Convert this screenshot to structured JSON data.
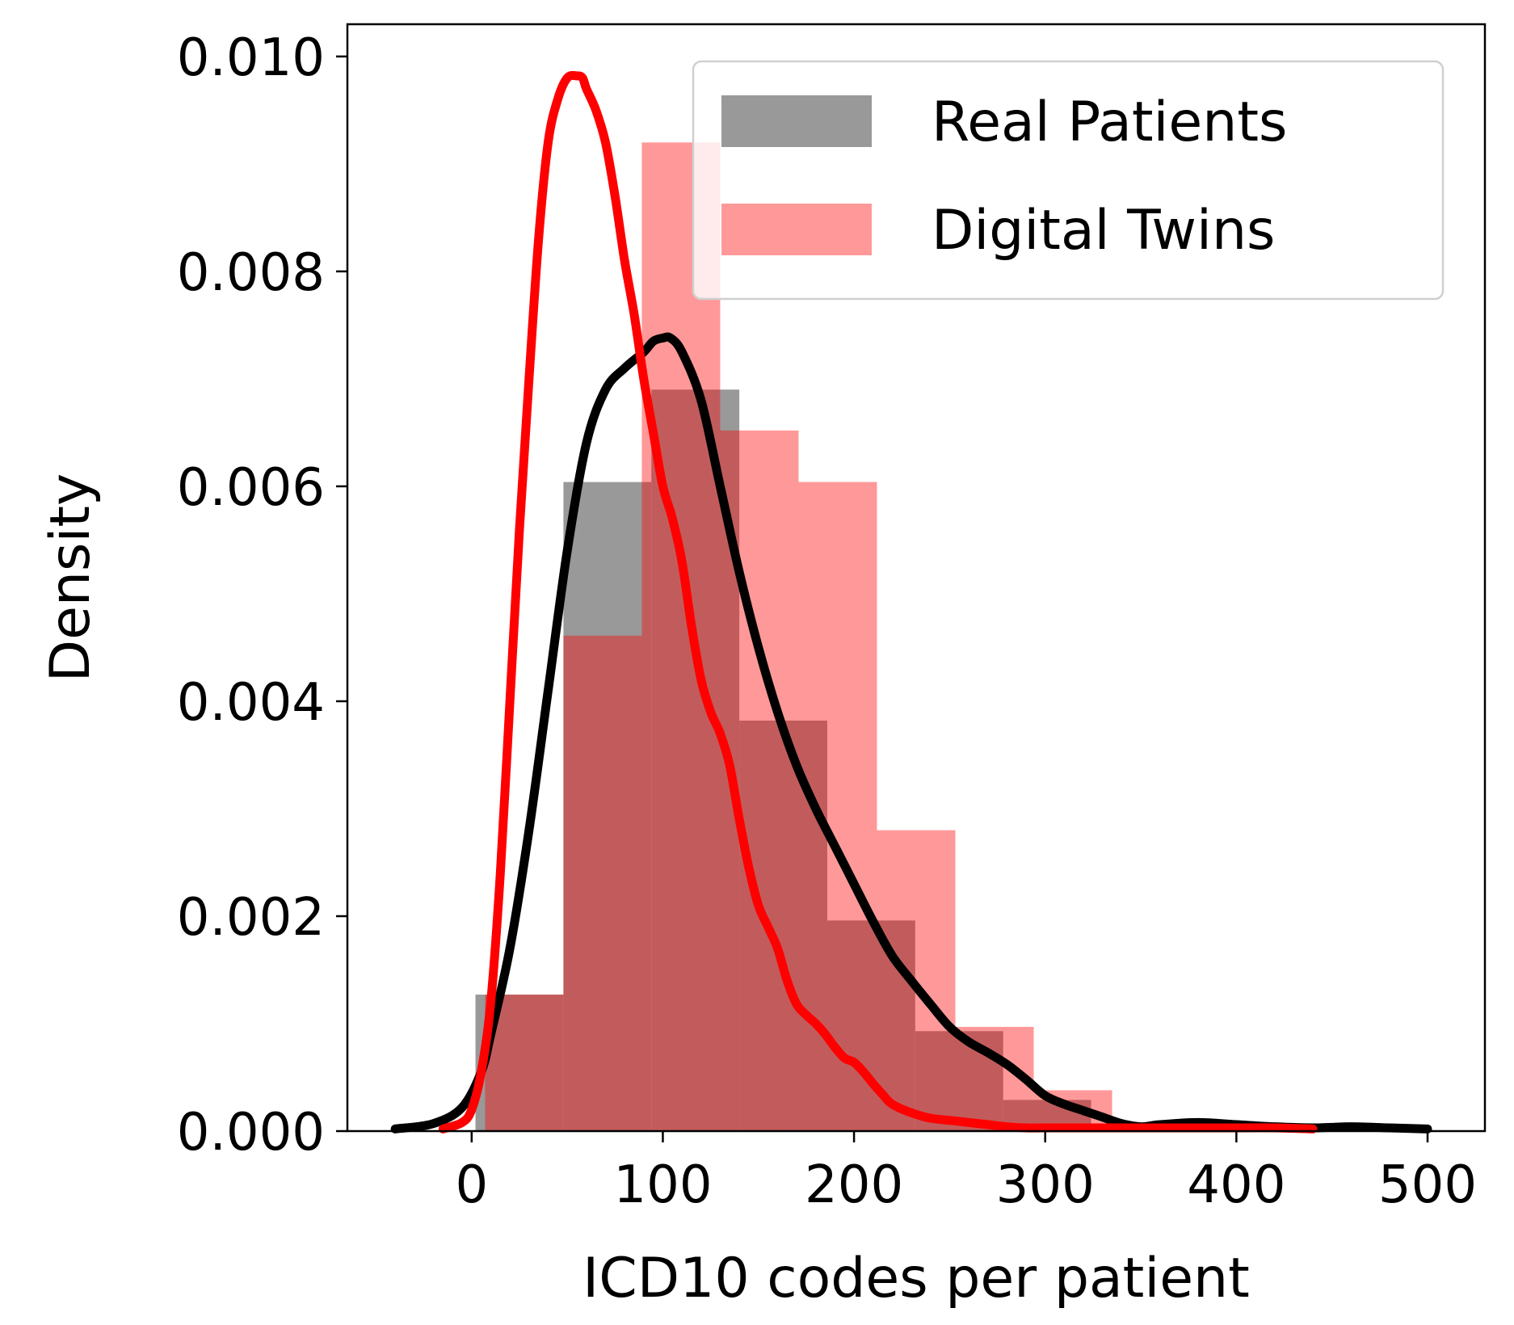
{
  "chart_data": {
    "type": "histogram+kde",
    "xlabel": "ICD10 codes per patient",
    "ylabel": "Density",
    "xlim": [
      -65,
      530
    ],
    "ylim": [
      0,
      0.0103
    ],
    "xticks": [
      0,
      100,
      200,
      300,
      400,
      500
    ],
    "yticks": [
      0.0,
      0.002,
      0.004,
      0.006,
      0.008,
      0.01
    ],
    "ytick_labels": [
      "0.000",
      "0.002",
      "0.004",
      "0.006",
      "0.008",
      "0.010"
    ],
    "grid": false,
    "legend": {
      "position": "top-right",
      "entries": [
        "Real Patients",
        "Digital Twins"
      ]
    },
    "series": [
      {
        "name": "Real Patients",
        "hist_color": "#999999",
        "line_color": "#000000",
        "bins": [
          {
            "x0": 2,
            "x1": 48,
            "density": 0.00127
          },
          {
            "x0": 48,
            "x1": 94,
            "density": 0.00604
          },
          {
            "x0": 94,
            "x1": 140,
            "density": 0.0069
          },
          {
            "x0": 140,
            "x1": 186,
            "density": 0.00382
          },
          {
            "x0": 186,
            "x1": 232,
            "density": 0.00196
          },
          {
            "x0": 232,
            "x1": 278,
            "density": 0.00093
          },
          {
            "x0": 278,
            "x1": 324,
            "density": 0.00029
          }
        ],
        "kde": {
          "x": [
            -40,
            -20,
            -5,
            5,
            10,
            20,
            30,
            40,
            50,
            60,
            70,
            80,
            90,
            95,
            100,
            104,
            110,
            120,
            130,
            140,
            150,
            160,
            170,
            180,
            190,
            200,
            210,
            220,
            230,
            240,
            250,
            260,
            270,
            280,
            290,
            300,
            310,
            320,
            330,
            340,
            350,
            360,
            380,
            400,
            420,
            440,
            460,
            480,
            500
          ],
          "y": [
            2e-05,
            7e-05,
            0.00022,
            0.00055,
            0.0009,
            0.0017,
            0.0028,
            0.0041,
            0.0054,
            0.0064,
            0.0069,
            0.0071,
            0.00725,
            0.00735,
            0.00738,
            0.00738,
            0.00725,
            0.0068,
            0.006,
            0.0052,
            0.0045,
            0.0039,
            0.0034,
            0.003,
            0.00265,
            0.0023,
            0.00195,
            0.00163,
            0.0014,
            0.00118,
            0.00097,
            0.00083,
            0.00073,
            0.00062,
            0.00048,
            0.00033,
            0.00025,
            0.00019,
            0.00013,
            7e-05,
            4e-05,
            6e-05,
            8e-05,
            6e-05,
            4e-05,
            3e-05,
            4e-05,
            3e-05,
            2e-05
          ]
        }
      },
      {
        "name": "Digital Twins",
        "hist_color": "#ff0000",
        "line_color": "#ff0000",
        "bins": [
          {
            "x0": 7,
            "x1": 48,
            "density": 0.00127
          },
          {
            "x0": 48,
            "x1": 89,
            "density": 0.00461
          },
          {
            "x0": 89,
            "x1": 130,
            "density": 0.0092
          },
          {
            "x0": 130,
            "x1": 171,
            "density": 0.00652
          },
          {
            "x0": 171,
            "x1": 212,
            "density": 0.00604
          },
          {
            "x0": 212,
            "x1": 253,
            "density": 0.0028
          },
          {
            "x0": 253,
            "x1": 294,
            "density": 0.00097
          },
          {
            "x0": 294,
            "x1": 335,
            "density": 0.00038
          }
        ],
        "kde": {
          "x": [
            -15,
            -5,
            0,
            5,
            10,
            15,
            20,
            25,
            30,
            35,
            40,
            45,
            50,
            55,
            58,
            60,
            65,
            70,
            75,
            80,
            85,
            90,
            95,
            100,
            105,
            110,
            115,
            120,
            125,
            130,
            135,
            140,
            145,
            150,
            155,
            160,
            165,
            170,
            175,
            180,
            185,
            190,
            195,
            200,
            205,
            210,
            215,
            220,
            230,
            240,
            250,
            260,
            270,
            280,
            290,
            300,
            320,
            340,
            360,
            380,
            400,
            420,
            440
          ],
          "y": [
            2e-05,
            8e-05,
            0.0002,
            0.00055,
            0.0012,
            0.0024,
            0.004,
            0.0056,
            0.007,
            0.0083,
            0.0092,
            0.0096,
            0.0098,
            0.00982,
            0.0098,
            0.0097,
            0.0095,
            0.0092,
            0.0087,
            0.0081,
            0.0076,
            0.007,
            0.0065,
            0.006,
            0.0057,
            0.0053,
            0.0047,
            0.0042,
            0.0039,
            0.0037,
            0.0034,
            0.0029,
            0.00245,
            0.0021,
            0.0019,
            0.0017,
            0.0014,
            0.00118,
            0.00108,
            0.001,
            0.0009,
            0.00078,
            0.00068,
            0.00064,
            0.00055,
            0.00044,
            0.00034,
            0.00025,
            0.00017,
            0.00012,
            0.0001,
            8e-05,
            6e-05,
            4e-05,
            3e-05,
            3e-05,
            3e-05,
            3e-05,
            3e-05,
            3e-05,
            3e-05,
            3e-05,
            2e-05
          ]
        }
      }
    ]
  }
}
